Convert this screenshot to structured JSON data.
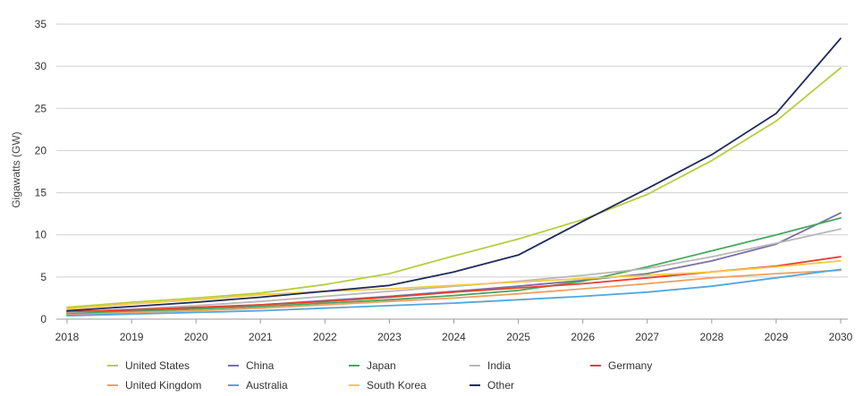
{
  "chart_data": {
    "type": "line",
    "title": "",
    "xlabel": "",
    "ylabel": "Gigawatts (GW)",
    "ylim": [
      0,
      35
    ],
    "yticks": [
      0,
      5,
      10,
      15,
      20,
      25,
      30,
      35
    ],
    "x": [
      "2018",
      "2019",
      "2020",
      "2021",
      "2022",
      "2023",
      "2024",
      "2025",
      "2026",
      "2027",
      "2028",
      "2029",
      "2030"
    ],
    "grid": true,
    "legend_position": "bottom",
    "series": [
      {
        "name": "United States",
        "color": "#b5cf3e",
        "values": [
          1.4,
          2.0,
          2.5,
          3.1,
          4.1,
          5.4,
          7.5,
          9.5,
          11.8,
          14.8,
          18.8,
          23.5,
          29.8
        ]
      },
      {
        "name": "China",
        "color": "#7b6fa6",
        "values": [
          0.7,
          1.0,
          1.3,
          1.7,
          2.2,
          2.7,
          3.3,
          3.9,
          4.6,
          5.4,
          6.9,
          8.9,
          12.6
        ]
      },
      {
        "name": "Japan",
        "color": "#45a85c",
        "values": [
          0.6,
          0.9,
          1.2,
          1.5,
          1.9,
          2.3,
          2.8,
          3.4,
          4.5,
          6.2,
          8.1,
          10.0,
          12.0
        ]
      },
      {
        "name": "India",
        "color": "#b8b8b8",
        "values": [
          0.8,
          1.2,
          1.6,
          2.1,
          2.7,
          3.3,
          3.9,
          4.5,
          5.2,
          6.0,
          7.4,
          9.0,
          10.7
        ]
      },
      {
        "name": "Germany",
        "color": "#e8412c",
        "values": [
          0.9,
          1.1,
          1.4,
          1.7,
          2.1,
          2.6,
          3.2,
          3.7,
          4.2,
          4.9,
          5.6,
          6.3,
          7.4
        ]
      },
      {
        "name": "United Kingdom",
        "color": "#f0a060",
        "values": [
          0.5,
          0.8,
          1.0,
          1.3,
          1.7,
          2.1,
          2.5,
          3.0,
          3.6,
          4.2,
          4.9,
          5.4,
          5.8
        ]
      },
      {
        "name": "Australia",
        "color": "#4fa8e0",
        "values": [
          0.4,
          0.6,
          0.8,
          1.0,
          1.3,
          1.6,
          1.9,
          2.3,
          2.7,
          3.2,
          3.9,
          4.9,
          5.9
        ]
      },
      {
        "name": "South Korea",
        "color": "#f5c842",
        "values": [
          1.2,
          1.8,
          2.3,
          2.9,
          3.3,
          3.6,
          4.0,
          4.4,
          4.8,
          5.2,
          5.6,
          6.2,
          6.9
        ]
      },
      {
        "name": "Other",
        "color": "#1f2a5c",
        "values": [
          1.0,
          1.5,
          2.0,
          2.6,
          3.3,
          4.0,
          5.6,
          7.6,
          11.6,
          15.5,
          19.5,
          24.4,
          33.3
        ]
      }
    ]
  }
}
